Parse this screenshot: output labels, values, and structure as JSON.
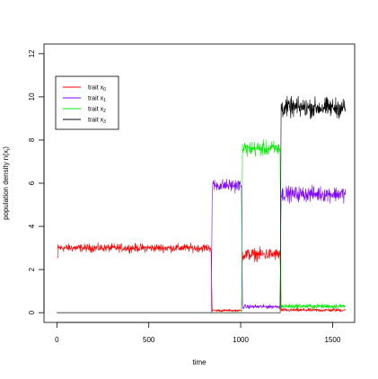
{
  "chart_data": {
    "type": "line",
    "title": "",
    "xlabel": "time",
    "ylabel": "population density n(x",
    "ylabel_sub": "i",
    "ylabel_tail": ")",
    "xlim": [
      -70,
      1620
    ],
    "ylim": [
      -0.45,
      12.45
    ],
    "xticks": [
      0,
      500,
      1000,
      1500
    ],
    "yticks": [
      0,
      2,
      4,
      6,
      8,
      10,
      12
    ],
    "grid": false,
    "legend_position": "top-left",
    "legend": [
      {
        "prefix": "trait x",
        "sub": "0",
        "color": "#ff0000"
      },
      {
        "prefix": "trait x",
        "sub": "1",
        "color": "#7f00ff"
      },
      {
        "prefix": "trait x",
        "sub": "2",
        "color": "#00ee00"
      },
      {
        "prefix": "trait x",
        "sub": "3",
        "color": "#000000"
      }
    ],
    "series": [
      {
        "name": "trait x0",
        "color": "#ff0000",
        "segments": [
          {
            "t0": 0,
            "t1": 5,
            "level": 2.55,
            "noise": 0.0
          },
          {
            "t0": 5,
            "t1": 840,
            "level": 3.0,
            "noise": 0.12
          },
          {
            "t0": 845,
            "t1": 1005,
            "level": 0.1,
            "noise": 0.03
          },
          {
            "t0": 1010,
            "t1": 1215,
            "level": 2.7,
            "noise": 0.18
          },
          {
            "t0": 1220,
            "t1": 1570,
            "level": 0.12,
            "noise": 0.05
          }
        ]
      },
      {
        "name": "trait x1",
        "color": "#7f00ff",
        "segments": [
          {
            "t0": 0,
            "t1": 840,
            "level": 0.0,
            "noise": 0.0
          },
          {
            "t0": 845,
            "t1": 1005,
            "level": 5.9,
            "noise": 0.18
          },
          {
            "t0": 1010,
            "t1": 1215,
            "level": 0.28,
            "noise": 0.06
          },
          {
            "t0": 1220,
            "t1": 1570,
            "level": 5.5,
            "noise": 0.22
          }
        ]
      },
      {
        "name": "trait x2",
        "color": "#00ee00",
        "segments": [
          {
            "t0": 0,
            "t1": 1005,
            "level": 0.0,
            "noise": 0.0
          },
          {
            "t0": 1010,
            "t1": 1215,
            "level": 7.6,
            "noise": 0.22
          },
          {
            "t0": 1220,
            "t1": 1570,
            "level": 0.3,
            "noise": 0.07
          }
        ]
      },
      {
        "name": "trait x3",
        "color": "#000000",
        "segments": [
          {
            "t0": 0,
            "t1": 1215,
            "level": 0.0,
            "noise": 0.0
          },
          {
            "t0": 1220,
            "t1": 1570,
            "level": 9.5,
            "noise": 0.28
          }
        ]
      }
    ]
  }
}
